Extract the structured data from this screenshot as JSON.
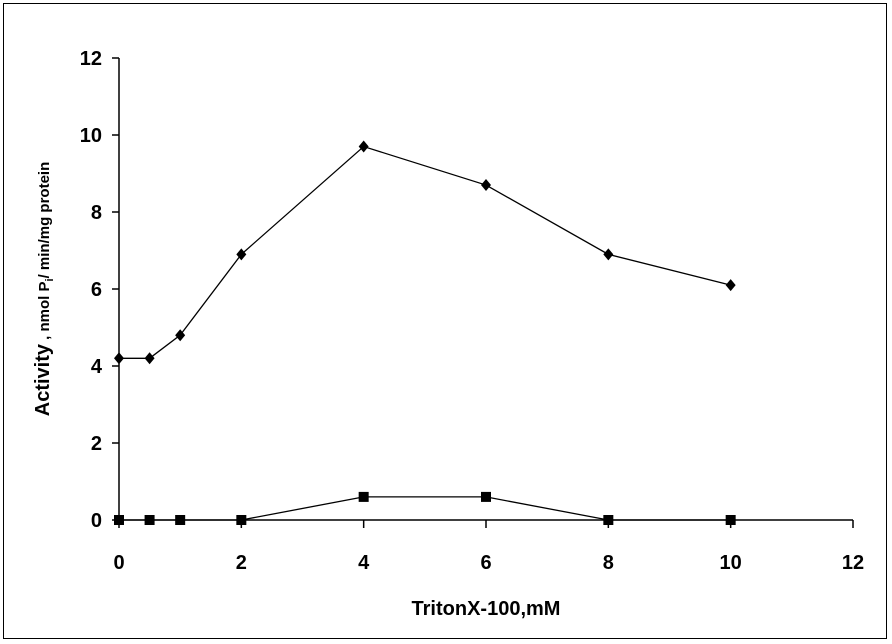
{
  "chart_data": {
    "type": "line",
    "title": "",
    "xlabel": "TritonX-100,mM",
    "ylabel": {
      "main": "Activity",
      "sep": " , ",
      "unit_a": "nmol P",
      "unit_sub": "i",
      "unit_b": "/ min/mg protein"
    },
    "xlim": [
      0,
      12
    ],
    "ylim": [
      0,
      12
    ],
    "xticks": [
      "0",
      "2",
      "4",
      "6",
      "8",
      "10",
      "12"
    ],
    "yticks": [
      "0",
      "2",
      "4",
      "6",
      "8",
      "10",
      "12"
    ],
    "grid": false,
    "legend": "none",
    "series": [
      {
        "marker": "diamond",
        "color": "#000000",
        "x": [
          0,
          0.5,
          1,
          2,
          4,
          6,
          8,
          10
        ],
        "y": [
          4.2,
          4.2,
          4.8,
          6.9,
          9.7,
          8.7,
          6.9,
          6.1
        ]
      },
      {
        "marker": "square",
        "color": "#000000",
        "x": [
          0,
          0.5,
          1,
          2,
          4,
          6,
          8,
          10
        ],
        "y": [
          0,
          0,
          0,
          0,
          0.6,
          0.6,
          0,
          0
        ]
      }
    ]
  }
}
